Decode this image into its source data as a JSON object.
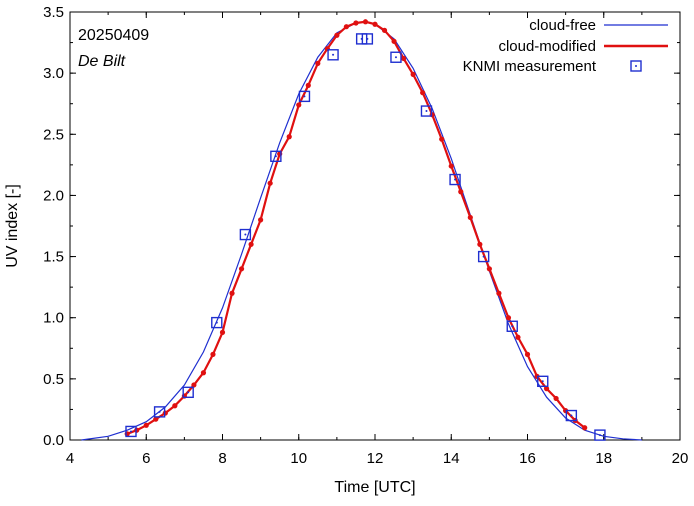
{
  "chart_data": {
    "type": "line",
    "date_label": "20250409",
    "location_label": "De Bilt",
    "xlabel": "Time  [UTC]",
    "ylabel": "UV index  [-]",
    "xlim": [
      4,
      20
    ],
    "ylim": [
      0,
      3.5
    ],
    "xticks": [
      "4",
      "6",
      "8",
      "10",
      "12",
      "14",
      "16",
      "18",
      "20"
    ],
    "yticks": [
      "0.0",
      "0.5",
      "1.0",
      "1.5",
      "2.0",
      "2.5",
      "3.0",
      "3.5"
    ],
    "grid": false,
    "legend_position": "top-right",
    "colors": {
      "cloud_free": "#1f2fd0",
      "cloud_modified": "#e01010",
      "measurement": "#1f2fd0"
    },
    "series": [
      {
        "name": "cloud-free",
        "style": "line",
        "x": [
          4.3,
          5.0,
          5.5,
          6.0,
          6.5,
          7.0,
          7.5,
          8.0,
          8.5,
          9.0,
          9.5,
          10.0,
          10.5,
          11.0,
          11.5,
          11.7,
          12.0,
          12.5,
          13.0,
          13.5,
          14.0,
          14.5,
          15.0,
          15.5,
          16.0,
          16.5,
          17.0,
          17.5,
          18.0,
          18.5,
          19.0
        ],
        "y": [
          0.0,
          0.03,
          0.08,
          0.15,
          0.27,
          0.45,
          0.72,
          1.08,
          1.52,
          1.98,
          2.43,
          2.83,
          3.13,
          3.33,
          3.41,
          3.42,
          3.4,
          3.28,
          3.04,
          2.71,
          2.3,
          1.84,
          1.38,
          0.95,
          0.6,
          0.35,
          0.18,
          0.08,
          0.03,
          0.01,
          0.0
        ]
      },
      {
        "name": "cloud-modified",
        "style": "line+markers",
        "x": [
          5.5,
          5.75,
          6.0,
          6.25,
          6.5,
          6.75,
          7.0,
          7.25,
          7.5,
          7.75,
          8.0,
          8.25,
          8.5,
          8.75,
          9.0,
          9.25,
          9.5,
          9.75,
          10.0,
          10.25,
          10.5,
          10.75,
          11.0,
          11.25,
          11.5,
          11.75,
          12.0,
          12.25,
          12.5,
          12.75,
          13.0,
          13.25,
          13.5,
          13.75,
          14.0,
          14.25,
          14.5,
          14.75,
          15.0,
          15.25,
          15.5,
          15.75,
          16.0,
          16.25,
          16.5,
          16.75,
          17.0,
          17.25,
          17.5
        ],
        "y": [
          0.05,
          0.08,
          0.12,
          0.17,
          0.22,
          0.28,
          0.36,
          0.45,
          0.55,
          0.7,
          0.88,
          1.2,
          1.4,
          1.6,
          1.8,
          2.1,
          2.34,
          2.48,
          2.74,
          2.9,
          3.08,
          3.2,
          3.31,
          3.38,
          3.41,
          3.42,
          3.4,
          3.35,
          3.26,
          3.12,
          2.99,
          2.84,
          2.66,
          2.46,
          2.24,
          2.03,
          1.82,
          1.6,
          1.4,
          1.2,
          1.0,
          0.84,
          0.7,
          0.52,
          0.42,
          0.34,
          0.24,
          0.16,
          0.1
        ]
      },
      {
        "name": "KNMI measurement",
        "style": "markers",
        "x": [
          5.6,
          6.35,
          7.1,
          7.85,
          8.6,
          9.4,
          10.15,
          10.9,
          11.65,
          11.8,
          12.55,
          13.35,
          14.1,
          14.85,
          15.6,
          16.4,
          17.15,
          17.9
        ],
        "y": [
          0.07,
          0.23,
          0.39,
          0.96,
          1.68,
          2.32,
          2.81,
          3.15,
          3.28,
          3.28,
          3.13,
          2.69,
          2.13,
          1.5,
          0.93,
          0.48,
          0.2,
          0.04
        ]
      }
    ]
  }
}
